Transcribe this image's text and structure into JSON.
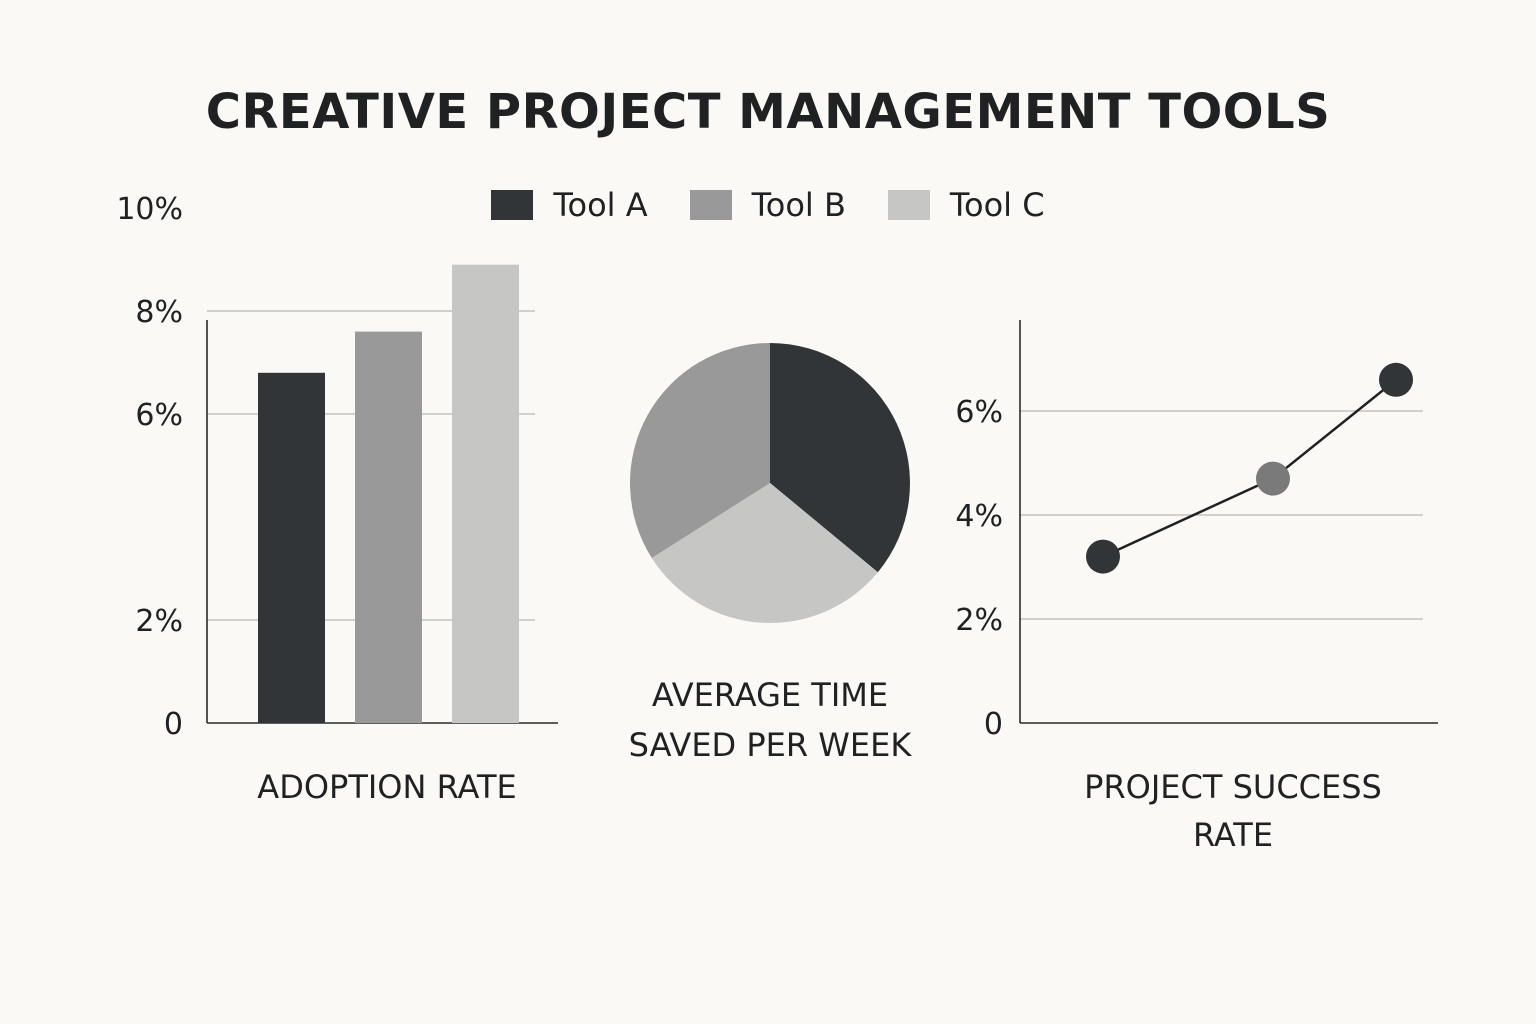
{
  "title": "CREATIVE PROJECT MANAGEMENT TOOLS",
  "legend": [
    {
      "label": "Tool A",
      "color": "#323537"
    },
    {
      "label": "Tool B",
      "color": "#999999"
    },
    {
      "label": "Tool C",
      "color": "#c6c6c4"
    }
  ],
  "chart_data": [
    {
      "type": "bar",
      "title": "ADOPTION RATE",
      "categories": [
        "Tool A",
        "Tool B",
        "Tool C"
      ],
      "values": [
        6.8,
        7.6,
        8.9
      ],
      "yticks": [
        "0",
        "2%",
        "6%",
        "8%",
        "10%"
      ],
      "ylim": [
        0,
        10
      ],
      "grid": true
    },
    {
      "type": "pie",
      "title": "AVERAGE TIME SAVED PER WEEK",
      "title_lines": [
        "AVERAGE TIME",
        "SAVED PER WEEK"
      ],
      "categories": [
        "Tool A",
        "Tool B",
        "Tool C"
      ],
      "values": [
        36,
        34,
        30
      ]
    },
    {
      "type": "line",
      "title": "PROJECT SUCCESS RATE",
      "title_lines": [
        "PROJECT SUCCESS",
        "RATE"
      ],
      "categories": [
        "Tool A",
        "Tool B",
        "Tool C"
      ],
      "values": [
        3.2,
        4.7,
        6.6
      ],
      "yticks": [
        "0",
        "2%",
        "4%",
        "6%"
      ],
      "ylim": [
        0,
        7.8
      ],
      "grid": true
    }
  ]
}
